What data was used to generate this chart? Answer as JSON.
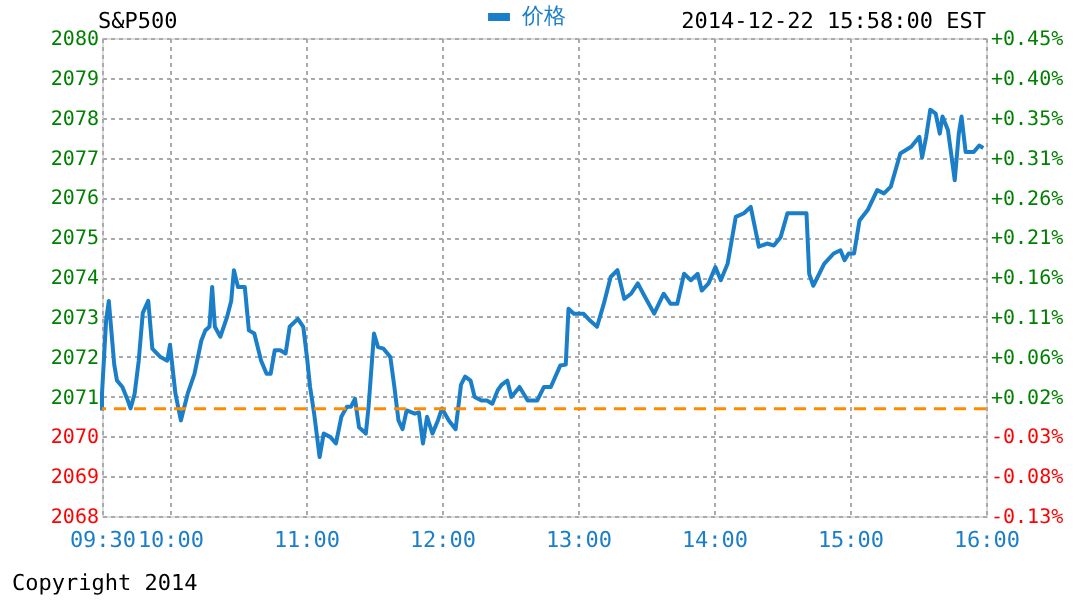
{
  "chart_data": {
    "type": "line",
    "title": "S&P500",
    "x": [
      9.5,
      9.5,
      9.53,
      9.55,
      9.57,
      9.59,
      9.61,
      9.65,
      9.69,
      9.71,
      9.74,
      9.77,
      9.8,
      9.84,
      9.87,
      9.93,
      9.98,
      10.0,
      10.04,
      10.08,
      10.13,
      10.18,
      10.23,
      10.26,
      10.29,
      10.31,
      10.33,
      10.37,
      10.42,
      10.45,
      10.47,
      10.5,
      10.55,
      10.58,
      10.62,
      10.67,
      10.71,
      10.74,
      10.77,
      10.81,
      10.85,
      10.88,
      10.94,
      10.98,
      11.01,
      11.03,
      11.06,
      11.1,
      11.13,
      11.18,
      11.22,
      11.26,
      11.3,
      11.33,
      11.36,
      11.39,
      11.44,
      11.46,
      11.5,
      11.53,
      11.57,
      11.62,
      11.65,
      11.68,
      11.71,
      11.74,
      11.8,
      11.83,
      11.86,
      11.89,
      11.93,
      11.97,
      12.0,
      12.05,
      12.1,
      12.14,
      12.17,
      12.21,
      12.24,
      12.29,
      12.33,
      12.37,
      12.41,
      12.44,
      12.48,
      12.51,
      12.57,
      12.63,
      12.7,
      12.75,
      12.8,
      12.87,
      12.91,
      12.93,
      12.97,
      13.04,
      13.09,
      13.14,
      13.19,
      13.24,
      13.29,
      13.34,
      13.39,
      13.44,
      13.48,
      13.56,
      13.63,
      13.68,
      13.73,
      13.78,
      13.83,
      13.88,
      13.91,
      13.96,
      14.01,
      14.05,
      14.1,
      14.16,
      14.22,
      14.27,
      14.3,
      14.33,
      14.39,
      14.44,
      14.49,
      14.54,
      14.68,
      14.7,
      14.73,
      14.81,
      14.88,
      14.93,
      14.96,
      14.99,
      15.03,
      15.07,
      15.13,
      15.2,
      15.25,
      15.3,
      15.37,
      15.45,
      15.51,
      15.53,
      15.56,
      15.59,
      15.63,
      15.66,
      15.68,
      15.72,
      15.75,
      15.77,
      15.8,
      15.82,
      15.85,
      15.91,
      15.95,
      15.98
    ],
    "series": [
      {
        "name": "价格",
        "color": "#1a7fc8",
        "values": [
          2070.65,
          2071.07,
          2072.9,
          2073.4,
          2072.6,
          2071.8,
          2071.4,
          2071.24,
          2070.9,
          2070.7,
          2071.07,
          2071.9,
          2073.1,
          2073.4,
          2072.2,
          2071.99,
          2071.9,
          2072.3,
          2071.07,
          2070.4,
          2071.07,
          2071.57,
          2072.4,
          2072.66,
          2072.75,
          2073.75,
          2072.75,
          2072.5,
          2073.0,
          2073.4,
          2074.17,
          2073.75,
          2073.75,
          2072.66,
          2072.58,
          2071.9,
          2071.57,
          2071.57,
          2072.16,
          2072.16,
          2072.08,
          2072.75,
          2072.95,
          2072.75,
          2071.9,
          2071.24,
          2070.57,
          2069.48,
          2070.07,
          2069.98,
          2069.82,
          2070.49,
          2070.74,
          2070.74,
          2070.94,
          2070.23,
          2070.07,
          2070.74,
          2072.58,
          2072.24,
          2072.2,
          2071.99,
          2071.24,
          2070.4,
          2070.18,
          2070.65,
          2070.57,
          2070.6,
          2069.82,
          2070.49,
          2070.07,
          2070.4,
          2070.7,
          2070.4,
          2070.18,
          2071.3,
          2071.5,
          2071.4,
          2070.99,
          2070.9,
          2070.9,
          2070.82,
          2071.16,
          2071.3,
          2071.4,
          2070.99,
          2071.24,
          2070.9,
          2070.9,
          2071.24,
          2071.24,
          2071.78,
          2071.8,
          2073.2,
          2073.08,
          2073.08,
          2072.9,
          2072.75,
          2073.33,
          2074.0,
          2074.17,
          2073.45,
          2073.58,
          2073.84,
          2073.58,
          2073.08,
          2073.58,
          2073.33,
          2073.33,
          2074.08,
          2073.92,
          2074.08,
          2073.66,
          2073.84,
          2074.25,
          2073.92,
          2074.33,
          2075.51,
          2075.6,
          2075.76,
          2075.26,
          2074.76,
          2074.84,
          2074.79,
          2075.0,
          2075.6,
          2075.6,
          2074.08,
          2073.78,
          2074.33,
          2074.59,
          2074.67,
          2074.42,
          2074.59,
          2074.59,
          2075.42,
          2075.68,
          2076.18,
          2076.1,
          2076.27,
          2077.1,
          2077.27,
          2077.52,
          2077.0,
          2077.52,
          2078.2,
          2078.1,
          2077.6,
          2078.03,
          2077.69,
          2076.94,
          2076.43,
          2077.6,
          2078.03,
          2077.14,
          2077.14,
          2077.3,
          2077.24
        ]
      }
    ],
    "xlim": [
      9.5,
      16
    ],
    "xticks": [
      {
        "value": 9.5,
        "label": "09:30"
      },
      {
        "value": 10,
        "label": "10:00"
      },
      {
        "value": 11,
        "label": "11:00"
      },
      {
        "value": 12,
        "label": "12:00"
      },
      {
        "value": 13,
        "label": "13:00"
      },
      {
        "value": 14,
        "label": "14:00"
      },
      {
        "value": 15,
        "label": "15:00"
      },
      {
        "value": 16,
        "label": "16:00"
      }
    ],
    "ylim": [
      2068,
      2080
    ],
    "yticks": [
      2068,
      2069,
      2070,
      2071,
      2072,
      2073,
      2074,
      2075,
      2076,
      2077,
      2078,
      2079,
      2080
    ],
    "y2lim": [
      -0.13,
      0.45
    ],
    "y2ticks": [
      {
        "value": -0.13,
        "label": "-0.13%"
      },
      {
        "value": -0.082,
        "label": "-0.08%"
      },
      {
        "value": -0.033,
        "label": "-0.03%"
      },
      {
        "value": 0.015,
        "label": "+0.02%"
      },
      {
        "value": 0.063,
        "label": "+0.06%"
      },
      {
        "value": 0.112,
        "label": "+0.11%"
      },
      {
        "value": 0.16,
        "label": "+0.16%"
      },
      {
        "value": 0.208,
        "label": "+0.21%"
      },
      {
        "value": 0.256,
        "label": "+0.26%"
      },
      {
        "value": 0.305,
        "label": "+0.31%"
      },
      {
        "value": 0.353,
        "label": "+0.35%"
      },
      {
        "value": 0.401,
        "label": "+0.40%"
      },
      {
        "value": 0.45,
        "label": "+0.45%"
      }
    ],
    "ref_lines": [
      {
        "axis": "y",
        "value": 2070.69,
        "color": "#ff8c00",
        "line_style": "dashed"
      }
    ],
    "grid": true,
    "legend": "top",
    "line_style": "solid",
    "marker": "none",
    "annotations": [
      "2014-12-22 15:58:00 EST",
      "Copyright 2014"
    ]
  }
}
